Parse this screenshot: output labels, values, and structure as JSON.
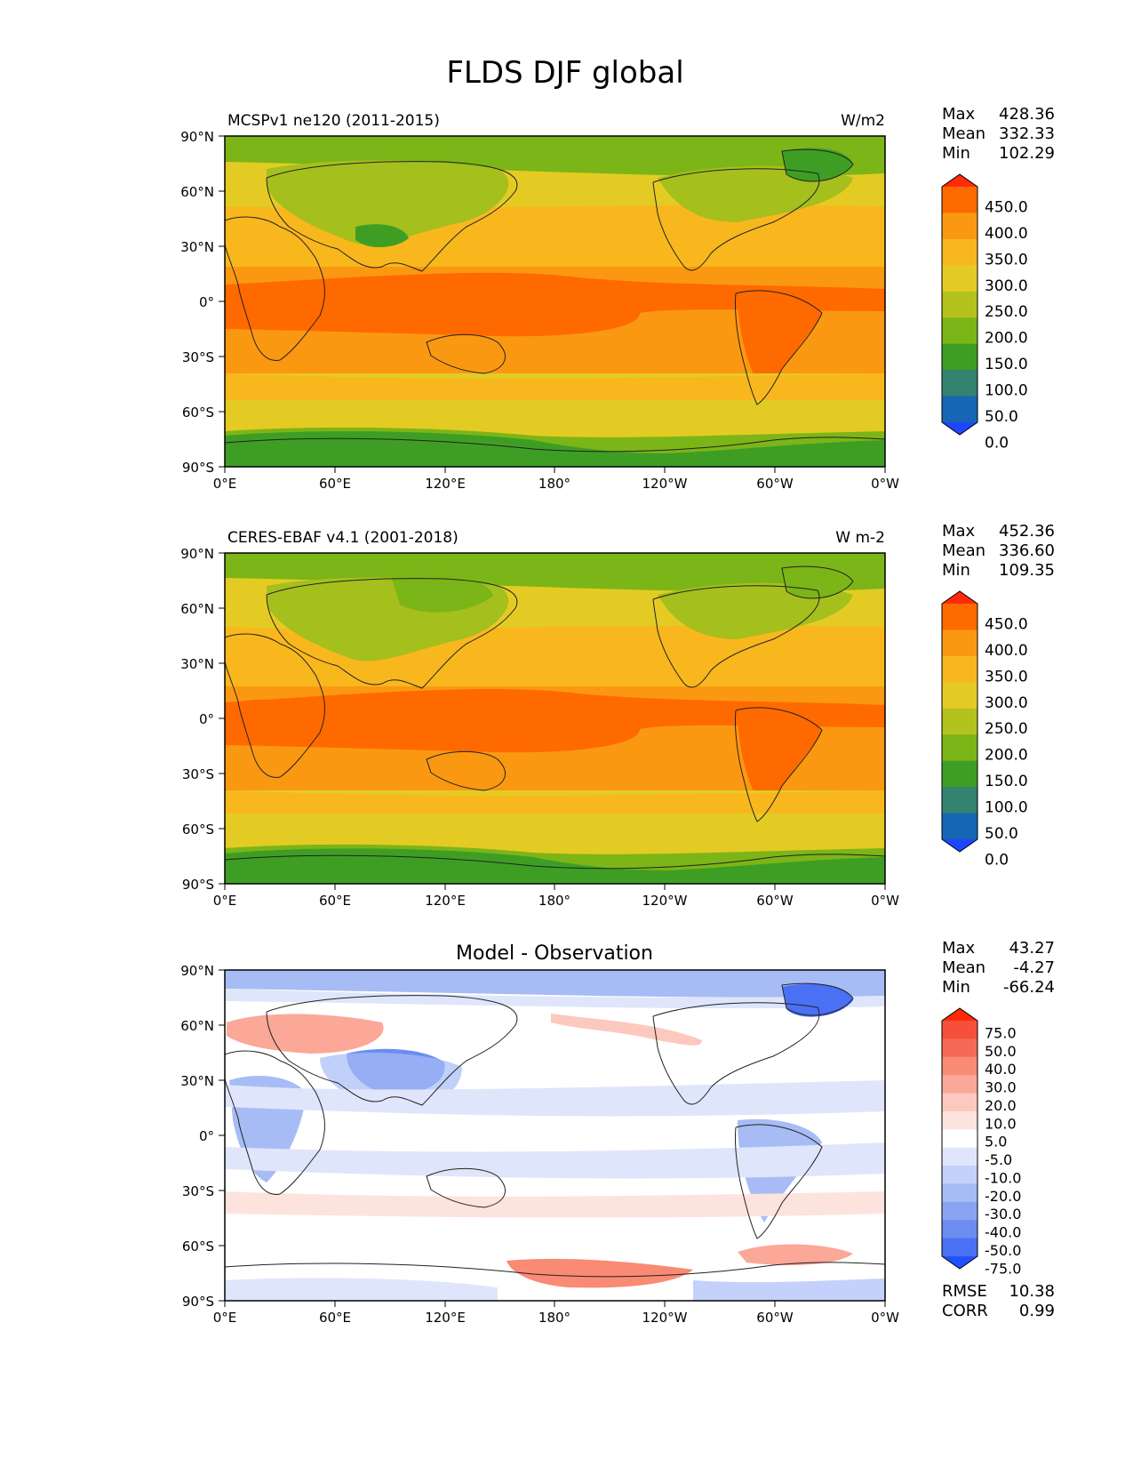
{
  "title": "FLDS DJF global",
  "lat_ticks": [
    "90°N",
    "60°N",
    "30°N",
    "0°",
    "30°S",
    "60°S",
    "90°S"
  ],
  "lon_ticks": [
    "0°E",
    "60°E",
    "120°E",
    "180°",
    "120°W",
    "60°W",
    "0°W"
  ],
  "panels": [
    {
      "id": "model",
      "left_title": "MCSPv1 ne120 (2011-2015)",
      "center_title": "",
      "unit": "W/m2",
      "stats": [
        {
          "label": "Max",
          "value": "428.36"
        },
        {
          "label": "Mean",
          "value": "332.33"
        },
        {
          "label": "Min",
          "value": "102.29"
        }
      ],
      "colorbar": {
        "labels": [
          "450.0",
          "400.0",
          "350.0",
          "300.0",
          "250.0",
          "200.0",
          "150.0",
          "100.0",
          "50.0",
          "0.0"
        ],
        "colors": [
          "#ff2a0a",
          "#ff6a00",
          "#fb9811",
          "#f9b71e",
          "#e4cb24",
          "#b3c21c",
          "#7cb517",
          "#3e9e24",
          "#348270",
          "#1566b4",
          "#1f46ff"
        ]
      },
      "extra_stats": []
    },
    {
      "id": "obs",
      "left_title": "CERES-EBAF v4.1 (2001-2018)",
      "center_title": "",
      "unit": "W m-2",
      "stats": [
        {
          "label": "Max",
          "value": "452.36"
        },
        {
          "label": "Mean",
          "value": "336.60"
        },
        {
          "label": "Min",
          "value": "109.35"
        }
      ],
      "colorbar": {
        "labels": [
          "450.0",
          "400.0",
          "350.0",
          "300.0",
          "250.0",
          "200.0",
          "150.0",
          "100.0",
          "50.0",
          "0.0"
        ],
        "colors": [
          "#ff2a0a",
          "#ff6a00",
          "#fb9811",
          "#f9b71e",
          "#e4cb24",
          "#b3c21c",
          "#7cb517",
          "#3e9e24",
          "#348270",
          "#1566b4",
          "#1f46ff"
        ]
      },
      "extra_stats": []
    },
    {
      "id": "diff",
      "left_title": "",
      "center_title": "Model - Observation",
      "unit": "",
      "stats": [
        {
          "label": "Max",
          "value": "43.27"
        },
        {
          "label": "Mean",
          "value": "-4.27"
        },
        {
          "label": "Min",
          "value": "-66.24"
        }
      ],
      "colorbar": {
        "labels": [
          "75.0",
          "50.0",
          "40.0",
          "30.0",
          "20.0",
          "10.0",
          "5.0",
          "-5.0",
          "-10.0",
          "-20.0",
          "-30.0",
          "-40.0",
          "-50.0",
          "-75.0"
        ],
        "colors": [
          "#ff2a0a",
          "#f4503c",
          "#f66a55",
          "#f98a74",
          "#fba898",
          "#fdc8be",
          "#fde3de",
          "#ffffff",
          "#dfe6fb",
          "#c4d1fa",
          "#a7bcf5",
          "#8aa4f1",
          "#6c8cf0",
          "#4a70f3",
          "#2151ff"
        ]
      },
      "extra_stats": [
        {
          "label": "RMSE",
          "value": "10.38"
        },
        {
          "label": "CORR",
          "value": "0.99"
        }
      ]
    }
  ]
}
